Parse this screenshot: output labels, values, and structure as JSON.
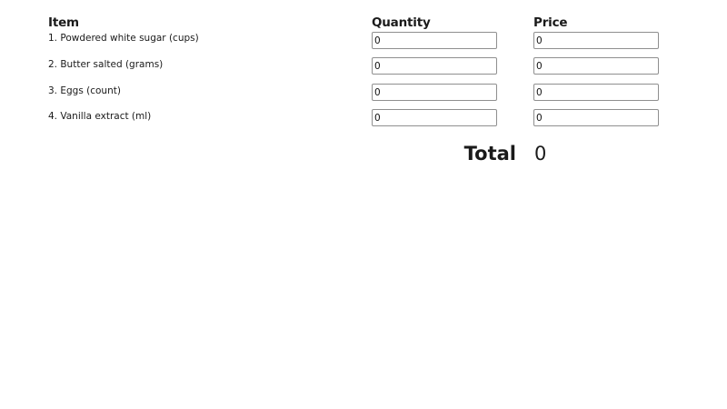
{
  "headers": {
    "item": "Item",
    "quantity": "Quantity",
    "price": "Price"
  },
  "rows": [
    {
      "label": "1. Powdered white sugar (cups)",
      "quantity": "0",
      "price": "0"
    },
    {
      "label": "2. Butter salted (grams)",
      "quantity": "0",
      "price": "0"
    },
    {
      "label": "3. Eggs (count)",
      "quantity": "0",
      "price": "0"
    },
    {
      "label": "4. Vanilla extract (ml)",
      "quantity": "0",
      "price": "0"
    }
  ],
  "total": {
    "label": "Total",
    "value": "0"
  }
}
